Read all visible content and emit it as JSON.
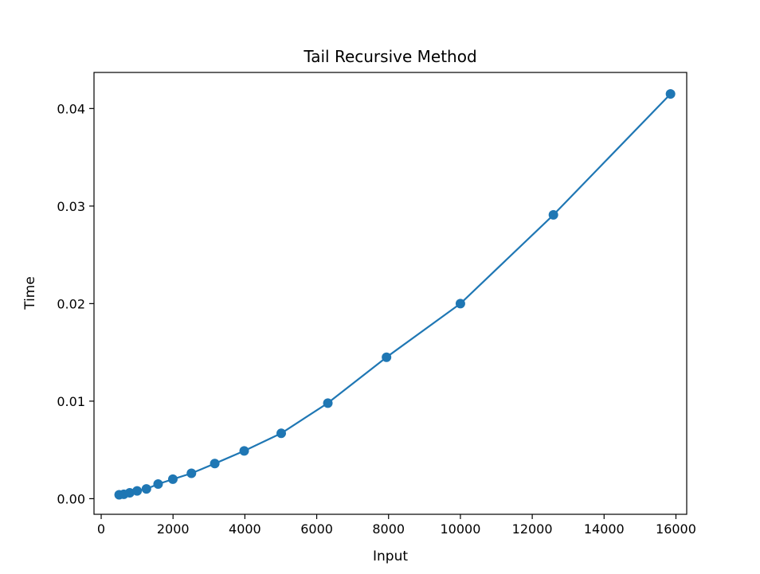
{
  "chart_data": {
    "type": "line",
    "title": "Tail Recursive Method",
    "xlabel": "Input",
    "ylabel": "Time",
    "xlim": [
      -200,
      16300
    ],
    "ylim": [
      -0.0016,
      0.0437
    ],
    "x_ticks": [
      0,
      2000,
      4000,
      6000,
      8000,
      10000,
      12000,
      14000,
      16000
    ],
    "x_tick_labels": [
      "0",
      "2000",
      "4000",
      "6000",
      "8000",
      "10000",
      "12000",
      "14000",
      "16000"
    ],
    "y_ticks": [
      0,
      0.01,
      0.02,
      0.03,
      0.04
    ],
    "y_tick_labels": [
      "0.00",
      "0.01",
      "0.02",
      "0.03",
      "0.04"
    ],
    "grid": false,
    "series": [
      {
        "color": "#1f77b4",
        "marker": "circle",
        "x": [
          500,
          630,
          794,
          1000,
          1259,
          1585,
          1995,
          2512,
          3162,
          3981,
          5012,
          6310,
          7943,
          10000,
          12589,
          15849
        ],
        "y": [
          0.0004,
          0.00045,
          0.0006,
          0.0008,
          0.001,
          0.0015,
          0.002,
          0.0026,
          0.0036,
          0.0049,
          0.0067,
          0.0098,
          0.0145,
          0.02,
          0.0291,
          0.0415
        ]
      }
    ]
  }
}
